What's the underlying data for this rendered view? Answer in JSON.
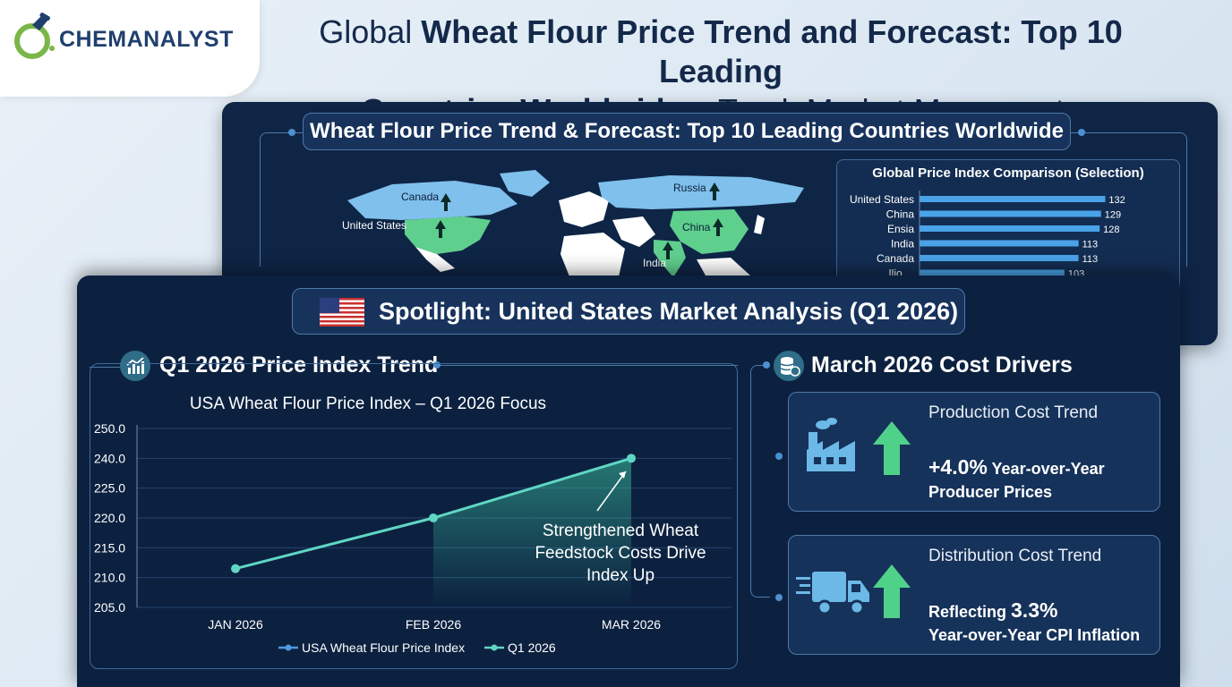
{
  "logo": {
    "text": "CHEMANALYST"
  },
  "headline": {
    "prefix": "Global ",
    "bold1": "Wheat Flour Price Trend and Forecast: Top 10 Leading",
    "bold2": "Countries Worldwide",
    "suffix": " – Track Market Movements"
  },
  "world_panel": {
    "title": "Wheat Flour Price Trend & Forecast: Top 10 Leading Countries Worldwide",
    "map_labels": {
      "canada": "Canada",
      "united_states": "United States",
      "russia": "Russia",
      "china": "China",
      "india": "India"
    },
    "colors": {
      "highlight_blue": "#7fc0ec",
      "highlight_green": "#5fcf8e",
      "land": "#ffffff"
    }
  },
  "spotlight": {
    "title": "Spotlight: United States Market Analysis (Q1 2026)",
    "trend_heading": "Q1 2026 Price Index Trend",
    "drivers_heading": "March 2026 Cost Drivers",
    "cards": [
      {
        "title": "Production Cost Trend",
        "value": "+4.0%",
        "line1_suffix": " Year-over-Year",
        "line2": "Producer Prices"
      },
      {
        "title": "Distribution Cost Trend",
        "line1_prefix": "Reflecting ",
        "value": "3.3%",
        "line2": "Year-over-Year CPI Inflation"
      }
    ]
  },
  "chart_data": [
    {
      "type": "bar",
      "orientation": "horizontal",
      "title": "Global Price Index Comparison (Selection)",
      "categories": [
        "United States",
        "China",
        "Ensia",
        "India",
        "Canada",
        "Ilio...."
      ],
      "values": [
        132,
        129,
        128,
        113,
        113,
        103
      ],
      "value_labels": [
        "132",
        "129",
        "128",
        "113",
        "113",
        "103"
      ],
      "xlim": [
        0,
        140
      ],
      "color": "#4aa3e8"
    },
    {
      "type": "line",
      "title": "USA Wheat Flour Price Index – Q1 2026 Focus",
      "categories": [
        "JAN 2026",
        "FEB 2026",
        "MAR 2026"
      ],
      "series": [
        {
          "name": "USA Wheat Flour Price Index",
          "values": [
            211.5,
            220.0,
            240.0
          ]
        }
      ],
      "y_tick_labels": [
        "250.0",
        "240.0",
        "225.0",
        "220.0",
        "215.0",
        "210.0",
        "205.0"
      ],
      "legend": [
        "USA Wheat Flour Price Index",
        "Q1 2026"
      ],
      "legend_position": "bottom",
      "annotation": [
        "Strengthened Wheat",
        "Feedstock Costs Drive",
        "Index Up"
      ],
      "grid": true,
      "color": "#5fd6c4"
    }
  ]
}
